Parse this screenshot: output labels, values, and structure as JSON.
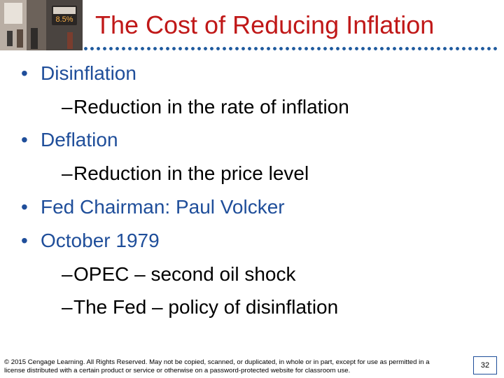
{
  "slide": {
    "title": "The Cost of Reducing Inflation",
    "bullets": [
      {
        "level": 1,
        "marker": "•",
        "text": "Disinflation"
      },
      {
        "level": 2,
        "marker": "–",
        "text": "Reduction in the rate of inflation"
      },
      {
        "level": 1,
        "marker": "•",
        "text": "Deflation"
      },
      {
        "level": 2,
        "marker": "–",
        "text": "Reduction in the price level"
      },
      {
        "level": 1,
        "marker": "•",
        "text": "Fed Chairman: Paul Volcker"
      },
      {
        "level": 1,
        "marker": "•",
        "text": "October 1979"
      },
      {
        "level": 2,
        "marker": "–",
        "text": "OPEC – second oil shock"
      },
      {
        "level": 2,
        "marker": "–",
        "text": "The Fed – policy of disinflation"
      }
    ],
    "photo": {
      "sign_text": "8.5%",
      "description_icon": "street-scene-photo"
    },
    "footer": "© 2015 Cengage Learning. All Rights Reserved. May not be copied, scanned, or duplicated, in whole or in part, except for use as permitted in a license distributed with a certain product or service or otherwise on a password-protected website for classroom use.",
    "page_number": "32",
    "colors": {
      "title": "#c01818",
      "level1": "#1f4e9a",
      "level2": "#000000",
      "dots": "#1f5a9e"
    }
  }
}
